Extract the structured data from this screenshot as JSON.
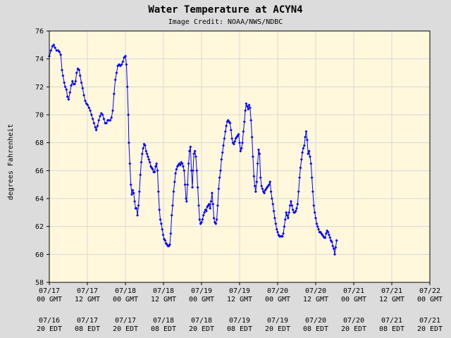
{
  "chart_data": {
    "type": "line",
    "title": "Water Temperature at ACYN4",
    "subtitle": "Image Credit: NOAA/NWS/NDBC",
    "ylabel": "degrees Fahrenheit",
    "xlabel": "",
    "ylim": [
      58,
      76
    ],
    "yticks": [
      58,
      60,
      62,
      64,
      66,
      68,
      70,
      72,
      74,
      76
    ],
    "xlim": [
      0,
      120
    ],
    "x_unit": "hours since 07/17 00 GMT",
    "xticks": [
      {
        "x": 0,
        "gmt_date": "07/17",
        "gmt_time": "00 GMT",
        "edt_date": "07/16",
        "edt_time": "20 EDT"
      },
      {
        "x": 12,
        "gmt_date": "07/17",
        "gmt_time": "12 GMT",
        "edt_date": "07/17",
        "edt_time": "08 EDT"
      },
      {
        "x": 24,
        "gmt_date": "07/18",
        "gmt_time": "00 GMT",
        "edt_date": "07/17",
        "edt_time": "20 EDT"
      },
      {
        "x": 36,
        "gmt_date": "07/18",
        "gmt_time": "12 GMT",
        "edt_date": "07/18",
        "edt_time": "08 EDT"
      },
      {
        "x": 48,
        "gmt_date": "07/19",
        "gmt_time": "00 GMT",
        "edt_date": "07/18",
        "edt_time": "20 EDT"
      },
      {
        "x": 60,
        "gmt_date": "07/19",
        "gmt_time": "12 GMT",
        "edt_date": "07/19",
        "edt_time": "08 EDT"
      },
      {
        "x": 72,
        "gmt_date": "07/20",
        "gmt_time": "00 GMT",
        "edt_date": "07/19",
        "edt_time": "20 EDT"
      },
      {
        "x": 84,
        "gmt_date": "07/20",
        "gmt_time": "12 GMT",
        "edt_date": "07/20",
        "edt_time": "08 EDT"
      },
      {
        "x": 96,
        "gmt_date": "07/21",
        "gmt_time": "00 GMT",
        "edt_date": "07/20",
        "edt_time": "20 EDT"
      },
      {
        "x": 108,
        "gmt_date": "07/21",
        "gmt_time": "12 GMT",
        "edt_date": "07/21",
        "edt_time": "08 EDT"
      },
      {
        "x": 120,
        "gmt_date": "07/22",
        "gmt_time": "00 GMT",
        "edt_date": "07/21",
        "edt_time": "20 EDT"
      }
    ],
    "grid": true,
    "series": [
      {
        "color": "#0000ff",
        "points": [
          [
            0.0,
            74.2
          ],
          [
            0.5,
            74.6
          ],
          [
            1.0,
            74.9
          ],
          [
            1.4,
            75.0
          ],
          [
            1.8,
            74.8
          ],
          [
            2.3,
            74.6
          ],
          [
            2.8,
            74.6
          ],
          [
            3.2,
            74.5
          ],
          [
            3.6,
            74.3
          ],
          [
            4.0,
            73.2
          ],
          [
            4.3,
            72.8
          ],
          [
            4.7,
            72.3
          ],
          [
            5.0,
            72.0
          ],
          [
            5.4,
            71.8
          ],
          [
            5.7,
            71.3
          ],
          [
            6.1,
            71.1
          ],
          [
            6.5,
            71.6
          ],
          [
            6.9,
            72.1
          ],
          [
            7.3,
            72.4
          ],
          [
            7.6,
            72.2
          ],
          [
            8.0,
            72.2
          ],
          [
            8.3,
            72.4
          ],
          [
            8.6,
            73.0
          ],
          [
            9.0,
            73.3
          ],
          [
            9.4,
            73.2
          ],
          [
            9.7,
            72.8
          ],
          [
            10.1,
            72.3
          ],
          [
            10.5,
            71.9
          ],
          [
            10.9,
            71.4
          ],
          [
            11.3,
            71.0
          ],
          [
            11.7,
            70.8
          ],
          [
            12.1,
            70.7
          ],
          [
            12.5,
            70.5
          ],
          [
            12.9,
            70.3
          ],
          [
            13.3,
            70.0
          ],
          [
            13.7,
            69.7
          ],
          [
            14.1,
            69.4
          ],
          [
            14.5,
            69.1
          ],
          [
            14.8,
            68.9
          ],
          [
            15.2,
            69.2
          ],
          [
            15.6,
            69.6
          ],
          [
            16.0,
            69.9
          ],
          [
            16.4,
            70.1
          ],
          [
            16.8,
            70.0
          ],
          [
            17.2,
            69.7
          ],
          [
            17.6,
            69.4
          ],
          [
            18.0,
            69.4
          ],
          [
            18.4,
            69.6
          ],
          [
            18.8,
            69.6
          ],
          [
            19.2,
            69.6
          ],
          [
            19.6,
            69.8
          ],
          [
            20.0,
            70.3
          ],
          [
            20.4,
            71.5
          ],
          [
            20.8,
            72.5
          ],
          [
            21.2,
            73.0
          ],
          [
            21.6,
            73.5
          ],
          [
            22.0,
            73.6
          ],
          [
            22.4,
            73.5
          ],
          [
            22.8,
            73.6
          ],
          [
            23.2,
            73.8
          ],
          [
            23.6,
            74.1
          ],
          [
            24.0,
            74.2
          ],
          [
            24.3,
            73.6
          ],
          [
            24.6,
            72.0
          ],
          [
            24.9,
            70.0
          ],
          [
            25.1,
            68.0
          ],
          [
            25.4,
            66.5
          ],
          [
            25.7,
            65.0
          ],
          [
            26.0,
            64.3
          ],
          [
            26.3,
            64.6
          ],
          [
            26.6,
            64.4
          ],
          [
            26.9,
            63.8
          ],
          [
            27.2,
            63.3
          ],
          [
            27.5,
            63.3
          ],
          [
            27.8,
            62.8
          ],
          [
            28.1,
            63.5
          ],
          [
            28.4,
            64.5
          ],
          [
            28.7,
            65.7
          ],
          [
            29.0,
            66.6
          ],
          [
            29.3,
            67.2
          ],
          [
            29.6,
            67.6
          ],
          [
            29.9,
            67.9
          ],
          [
            30.2,
            67.8
          ],
          [
            30.5,
            67.4
          ],
          [
            30.8,
            67.2
          ],
          [
            31.1,
            67.0
          ],
          [
            31.4,
            66.8
          ],
          [
            31.7,
            66.6
          ],
          [
            32.0,
            66.3
          ],
          [
            32.3,
            66.2
          ],
          [
            32.6,
            66.1
          ],
          [
            32.9,
            65.9
          ],
          [
            33.2,
            65.9
          ],
          [
            33.5,
            66.3
          ],
          [
            33.8,
            66.5
          ],
          [
            34.1,
            66.0
          ],
          [
            34.4,
            64.5
          ],
          [
            34.7,
            63.2
          ],
          [
            35.0,
            62.5
          ],
          [
            35.3,
            62.2
          ],
          [
            35.6,
            61.8
          ],
          [
            35.9,
            61.4
          ],
          [
            36.2,
            61.1
          ],
          [
            36.5,
            61.0
          ],
          [
            36.8,
            60.8
          ],
          [
            37.1,
            60.7
          ],
          [
            37.4,
            60.6
          ],
          [
            37.7,
            60.6
          ],
          [
            38.0,
            60.7
          ],
          [
            38.3,
            61.5
          ],
          [
            38.6,
            62.8
          ],
          [
            38.9,
            63.5
          ],
          [
            39.2,
            64.5
          ],
          [
            39.5,
            65.2
          ],
          [
            39.8,
            65.8
          ],
          [
            40.1,
            66.1
          ],
          [
            40.4,
            66.3
          ],
          [
            40.7,
            66.4
          ],
          [
            41.0,
            66.5
          ],
          [
            41.3,
            66.4
          ],
          [
            41.6,
            66.6
          ],
          [
            41.9,
            66.5
          ],
          [
            42.2,
            66.3
          ],
          [
            42.5,
            66.0
          ],
          [
            42.8,
            65.0
          ],
          [
            43.1,
            64.0
          ],
          [
            43.3,
            63.8
          ],
          [
            43.6,
            65.0
          ],
          [
            43.9,
            66.5
          ],
          [
            44.2,
            67.4
          ],
          [
            44.5,
            67.7
          ],
          [
            44.8,
            66.0
          ],
          [
            45.1,
            64.8
          ],
          [
            45.3,
            66.0
          ],
          [
            45.6,
            67.2
          ],
          [
            45.9,
            67.4
          ],
          [
            46.2,
            67.0
          ],
          [
            46.5,
            66.0
          ],
          [
            46.8,
            64.8
          ],
          [
            47.1,
            63.5
          ],
          [
            47.4,
            62.5
          ],
          [
            47.7,
            62.2
          ],
          [
            48.0,
            62.3
          ],
          [
            48.3,
            62.5
          ],
          [
            48.6,
            62.8
          ],
          [
            48.9,
            63.0
          ],
          [
            49.2,
            63.2
          ],
          [
            49.5,
            63.1
          ],
          [
            49.8,
            63.4
          ],
          [
            50.1,
            63.5
          ],
          [
            50.4,
            63.6
          ],
          [
            50.7,
            63.3
          ],
          [
            51.0,
            63.8
          ],
          [
            51.3,
            64.4
          ],
          [
            51.6,
            63.6
          ],
          [
            51.9,
            62.6
          ],
          [
            52.2,
            62.3
          ],
          [
            52.5,
            62.2
          ],
          [
            52.8,
            62.5
          ],
          [
            53.1,
            63.5
          ],
          [
            53.4,
            64.7
          ],
          [
            53.7,
            65.5
          ],
          [
            54.0,
            66.0
          ],
          [
            54.3,
            66.8
          ],
          [
            54.6,
            67.3
          ],
          [
            54.9,
            67.8
          ],
          [
            55.2,
            68.3
          ],
          [
            55.5,
            68.8
          ],
          [
            55.8,
            69.2
          ],
          [
            56.1,
            69.5
          ],
          [
            56.4,
            69.6
          ],
          [
            56.7,
            69.5
          ],
          [
            57.0,
            69.4
          ],
          [
            57.3,
            68.9
          ],
          [
            57.6,
            68.3
          ],
          [
            57.9,
            68.0
          ],
          [
            58.2,
            67.9
          ],
          [
            58.5,
            68.1
          ],
          [
            58.8,
            68.3
          ],
          [
            59.1,
            68.4
          ],
          [
            59.4,
            68.5
          ],
          [
            59.7,
            68.6
          ],
          [
            60.0,
            68.0
          ],
          [
            60.3,
            67.4
          ],
          [
            60.6,
            67.6
          ],
          [
            60.9,
            68.0
          ],
          [
            61.2,
            68.8
          ],
          [
            61.5,
            69.5
          ],
          [
            61.8,
            70.3
          ],
          [
            62.1,
            70.8
          ],
          [
            62.4,
            70.6
          ],
          [
            62.7,
            70.4
          ],
          [
            63.0,
            70.7
          ],
          [
            63.3,
            70.5
          ],
          [
            63.6,
            69.6
          ],
          [
            63.9,
            68.4
          ],
          [
            64.2,
            67.0
          ],
          [
            64.5,
            65.6
          ],
          [
            64.8,
            64.9
          ],
          [
            65.1,
            64.5
          ],
          [
            65.4,
            65.2
          ],
          [
            65.7,
            66.5
          ],
          [
            66.0,
            67.5
          ],
          [
            66.3,
            67.2
          ],
          [
            66.6,
            65.5
          ],
          [
            66.9,
            64.9
          ],
          [
            67.2,
            64.7
          ],
          [
            67.5,
            64.5
          ],
          [
            67.8,
            64.4
          ],
          [
            68.1,
            64.6
          ],
          [
            68.4,
            64.7
          ],
          [
            68.7,
            64.8
          ],
          [
            69.0,
            64.9
          ],
          [
            69.3,
            65.0
          ],
          [
            69.6,
            65.2
          ],
          [
            69.9,
            64.5
          ],
          [
            70.2,
            64.0
          ],
          [
            70.5,
            63.6
          ],
          [
            70.8,
            63.1
          ],
          [
            71.1,
            62.6
          ],
          [
            71.4,
            62.2
          ],
          [
            71.7,
            61.8
          ],
          [
            72.0,
            61.6
          ],
          [
            72.3,
            61.4
          ],
          [
            72.6,
            61.3
          ],
          [
            72.9,
            61.3
          ],
          [
            73.2,
            61.3
          ],
          [
            73.5,
            61.3
          ],
          [
            73.8,
            61.5
          ],
          [
            74.1,
            62.0
          ],
          [
            74.4,
            62.5
          ],
          [
            74.7,
            63.0
          ],
          [
            75.0,
            62.8
          ],
          [
            75.3,
            62.6
          ],
          [
            75.6,
            63.0
          ],
          [
            75.9,
            63.5
          ],
          [
            76.2,
            63.8
          ],
          [
            76.5,
            63.5
          ],
          [
            76.8,
            63.2
          ],
          [
            77.1,
            63.0
          ],
          [
            77.4,
            63.0
          ],
          [
            77.7,
            63.1
          ],
          [
            78.0,
            63.3
          ],
          [
            78.3,
            63.6
          ],
          [
            78.6,
            64.5
          ],
          [
            78.9,
            65.5
          ],
          [
            79.2,
            66.2
          ],
          [
            79.5,
            66.8
          ],
          [
            79.8,
            67.3
          ],
          [
            80.1,
            67.6
          ],
          [
            80.4,
            67.8
          ],
          [
            80.7,
            68.4
          ],
          [
            81.0,
            68.8
          ],
          [
            81.3,
            68.2
          ],
          [
            81.6,
            67.2
          ],
          [
            81.9,
            67.4
          ],
          [
            82.2,
            67.0
          ],
          [
            82.5,
            66.5
          ],
          [
            82.8,
            65.5
          ],
          [
            83.1,
            64.5
          ],
          [
            83.4,
            63.5
          ],
          [
            83.7,
            63.0
          ],
          [
            84.0,
            62.6
          ],
          [
            84.3,
            62.2
          ],
          [
            84.6,
            62.0
          ],
          [
            84.9,
            61.8
          ],
          [
            85.2,
            61.6
          ],
          [
            85.5,
            61.6
          ],
          [
            85.8,
            61.5
          ],
          [
            86.1,
            61.4
          ],
          [
            86.4,
            61.3
          ],
          [
            86.7,
            61.2
          ],
          [
            87.0,
            61.2
          ],
          [
            87.3,
            61.5
          ],
          [
            87.6,
            61.7
          ],
          [
            87.9,
            61.6
          ],
          [
            88.2,
            61.4
          ],
          [
            88.5,
            61.2
          ],
          [
            88.8,
            61.0
          ],
          [
            89.1,
            60.9
          ],
          [
            89.4,
            60.6
          ],
          [
            89.7,
            60.4
          ],
          [
            90.0,
            60.0
          ],
          [
            90.3,
            60.5
          ],
          [
            90.6,
            61.0
          ]
        ]
      }
    ]
  }
}
